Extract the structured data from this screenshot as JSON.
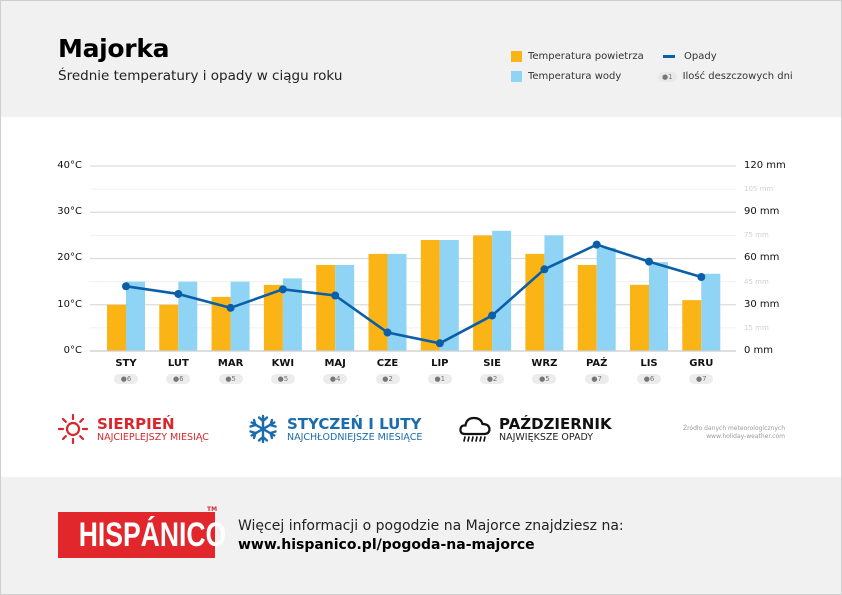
{
  "header": {
    "title": "Majorka",
    "subtitle": "Średnie temperatury i opady w ciągu roku"
  },
  "legend": {
    "air_temp": "Temperatura powietrza",
    "water_temp": "Temperatura wody",
    "rain": "Opady",
    "rainy_days": "Ilość deszczowych dni",
    "rainy_days_pill": "1"
  },
  "colors": {
    "air": "#fbb415",
    "water": "#8fd4f5",
    "rain": "#0a5fa8",
    "hot": "#d9262c",
    "cold": "#1a6cad",
    "rainy": "#111111"
  },
  "axes": {
    "left": [
      "0°C",
      "10°C",
      "20°C",
      "30°C",
      "40°C"
    ],
    "right_major": [
      "0 mm",
      "30 mm",
      "60 mm",
      "90 mm",
      "120 mm"
    ],
    "right_minor": [
      "15 mm",
      "45 mm",
      "75 mm",
      "105 mm"
    ]
  },
  "chart_data": {
    "type": "bar",
    "title": "Majorka – Średnie temperatury i opady w ciągu roku",
    "categories": [
      "STY",
      "LUT",
      "MAR",
      "KWI",
      "MAJ",
      "CZE",
      "LIP",
      "SIE",
      "WRZ",
      "PAŹ",
      "LIS",
      "GRU"
    ],
    "series": [
      {
        "name": "Temperatura powietrza",
        "type": "bar",
        "axis": "left",
        "unit": "°C",
        "values": [
          10,
          10,
          11.7,
          14.3,
          18.6,
          21,
          24,
          25,
          21,
          18.6,
          14.3,
          11
        ]
      },
      {
        "name": "Temperatura wody",
        "type": "bar",
        "axis": "left",
        "unit": "°C",
        "values": [
          15,
          15,
          15,
          15.7,
          18.6,
          21,
          24,
          26,
          25,
          22.3,
          19.2,
          16.7
        ]
      },
      {
        "name": "Opady",
        "type": "line",
        "axis": "right",
        "unit": "mm",
        "values": [
          42,
          37,
          28,
          40,
          36,
          12,
          5,
          23,
          53,
          69,
          58,
          48
        ]
      },
      {
        "name": "Ilość deszczowych dni",
        "type": "label",
        "values": [
          6,
          6,
          5,
          5,
          4,
          2,
          1,
          2,
          5,
          7,
          6,
          7
        ]
      }
    ],
    "ylabel_left": "°C",
    "ylabel_right": "mm",
    "ylim_left": [
      0,
      40
    ],
    "ylim_right": [
      0,
      120
    ],
    "grid": true,
    "legend_position": "top-right"
  },
  "highlights": [
    {
      "title": "SIERPIEŃ",
      "subtitle": "NAJCIEPLEJSZY MIESIĄC",
      "icon": "sun-icon"
    },
    {
      "title": "STYCZEŃ I LUTY",
      "subtitle": "NAJCHŁODNIEJSZE MIESIĄCE",
      "icon": "snowflake-icon"
    },
    {
      "title": "PAŹDZIERNIK",
      "subtitle": "NAJWIĘKSZE OPADY",
      "icon": "rain-cloud-icon"
    }
  ],
  "source": {
    "line1": "Źródło danych meteorologicznych",
    "line2": "www.holiday-weather.com"
  },
  "footer": {
    "logo": "HISPÁNICO",
    "tm": "TM",
    "info": "Więcej informacji o pogodzie na Majorce znajdziesz na:",
    "url": "www.hispanico.pl/pogoda-na-majorce"
  }
}
